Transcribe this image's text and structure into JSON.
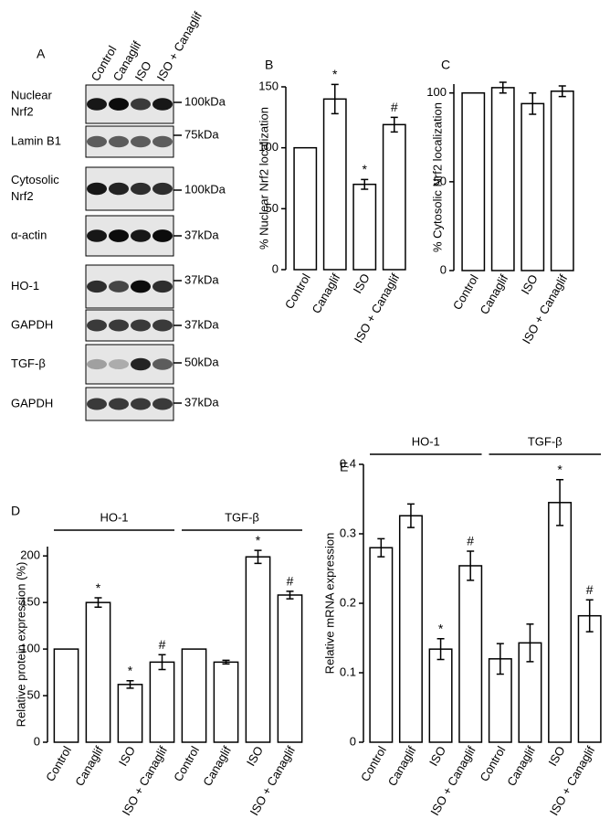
{
  "panel_a": {
    "label": "A",
    "columns": [
      "Control",
      "Canaglif",
      "ISO",
      "ISO + Canaglif"
    ],
    "rows": [
      {
        "label": [
          "Nuclear",
          "Nrf2"
        ],
        "marker": "100kDa"
      },
      {
        "label": [
          "Lamin B1"
        ],
        "marker": "75kDa"
      },
      {
        "label": [
          "Cytosolic",
          "Nrf2"
        ],
        "marker": "100kDa"
      },
      {
        "label": [
          "α-actin"
        ],
        "marker": "37kDa"
      },
      {
        "label": [
          "HO-1"
        ],
        "marker": "37kDa"
      },
      {
        "label": [
          "GAPDH"
        ],
        "marker": "37kDa"
      },
      {
        "label": [
          "TGF-β"
        ],
        "marker": "50kDa"
      },
      {
        "label": [
          "GAPDH"
        ],
        "marker": "37kDa"
      }
    ]
  },
  "chart_data": [
    {
      "type": "bar",
      "title": "B",
      "y_label": "% Nuclear Nrf2 localization",
      "categories": [
        "Control",
        "Canaglif",
        "ISO",
        "ISO + Canaglif"
      ],
      "values": [
        100,
        140,
        70,
        119
      ],
      "errors": [
        0,
        12,
        4,
        6
      ],
      "annotations": [
        null,
        "*",
        "*",
        "#"
      ],
      "ylim": [
        0,
        150
      ],
      "yticks": [
        0,
        50,
        100,
        150
      ],
      "color": "#ffffff"
    },
    {
      "type": "bar",
      "title": "C",
      "y_label": "% Cytosolic Nrf2 localization",
      "categories": [
        "Control",
        "Canaglif",
        "ISO",
        "ISO + Canaglif"
      ],
      "values": [
        100,
        103,
        94,
        101
      ],
      "errors": [
        0,
        3,
        6,
        3
      ],
      "annotations": [
        null,
        null,
        null,
        null
      ],
      "ylim": [
        0,
        105
      ],
      "yticks": [
        0,
        50,
        100
      ],
      "color": "#ffffff"
    },
    {
      "type": "bar",
      "title": "D",
      "y_label": "Relative protein expression (%)",
      "group_labels": [
        "HO-1",
        "TGF-β"
      ],
      "categories": [
        "Control",
        "Canaglif",
        "ISO",
        "ISO + Canaglif",
        "Control",
        "Canaglif",
        "ISO",
        "ISO + Canaglif"
      ],
      "values": [
        100,
        150,
        62,
        86,
        100,
        86,
        199,
        158
      ],
      "errors": [
        0,
        5,
        4,
        8,
        0,
        2,
        7,
        4
      ],
      "annotations": [
        null,
        "*",
        "*",
        "#",
        null,
        null,
        "*",
        "#"
      ],
      "ylim": [
        0,
        210
      ],
      "yticks": [
        0,
        50,
        100,
        150,
        200
      ],
      "color": "#ffffff"
    },
    {
      "type": "bar",
      "title": "E",
      "y_label": "Relative mRNA expression",
      "group_labels": [
        "HO-1",
        "TGF-β"
      ],
      "categories": [
        "Control",
        "Canaglif",
        "ISO",
        "ISO + Canaglif",
        "Control",
        "Canaglif",
        "ISO",
        "ISO + Canaglif"
      ],
      "values": [
        0.28,
        0.326,
        0.134,
        0.254,
        0.12,
        0.143,
        0.345,
        0.182
      ],
      "errors": [
        0.013,
        0.017,
        0.015,
        0.021,
        0.022,
        0.027,
        0.033,
        0.023
      ],
      "annotations": [
        null,
        null,
        "*",
        "#",
        null,
        null,
        "*",
        "#"
      ],
      "ylim": [
        0,
        0.4
      ],
      "yticks": [
        0,
        0.1,
        0.2,
        0.3,
        0.4
      ],
      "color": "#ffffff"
    }
  ]
}
